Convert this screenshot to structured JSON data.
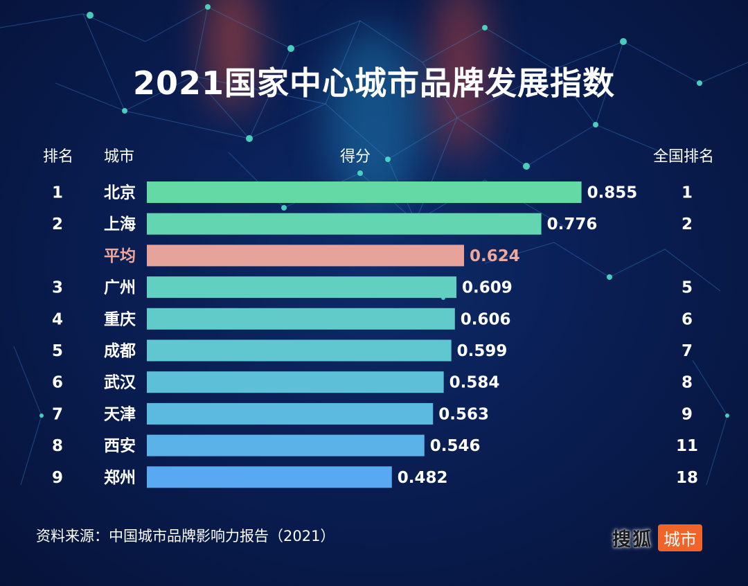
{
  "title": "2021国家中心城市品牌发展指数",
  "headers": {
    "rank": "排名",
    "city": "城市",
    "score": "得分",
    "national_rank": "全国排名"
  },
  "source": "资料来源：中国城市品牌影响力报告（2021）",
  "logo": {
    "text": "搜狐",
    "badge": "城市"
  },
  "colors": {
    "average_bar": "#e6a39c",
    "average_text": "#f0a89a",
    "logo_badge": "#f0642a"
  },
  "chart_data": {
    "type": "bar",
    "orientation": "horizontal",
    "title": "2021国家中心城市品牌发展指数",
    "xlabel": "得分",
    "xlim": [
      0,
      1
    ],
    "grid": false,
    "rows": [
      {
        "rank": "1",
        "city": "北京",
        "score": 0.855,
        "score_label": "0.855",
        "national_rank": "1",
        "color": "#64d9a6",
        "is_average": false
      },
      {
        "rank": "2",
        "city": "上海",
        "score": 0.776,
        "score_label": "0.776",
        "national_rank": "2",
        "color": "#64d5b1",
        "is_average": false
      },
      {
        "rank": "",
        "city": "平均",
        "score": 0.624,
        "score_label": "0.624",
        "national_rank": "",
        "color": "#e6a39c",
        "is_average": true
      },
      {
        "rank": "3",
        "city": "广州",
        "score": 0.609,
        "score_label": "0.609",
        "national_rank": "5",
        "color": "#62d0c1",
        "is_average": false
      },
      {
        "rank": "4",
        "city": "重庆",
        "score": 0.606,
        "score_label": "0.606",
        "national_rank": "6",
        "color": "#61cbc9",
        "is_average": false
      },
      {
        "rank": "5",
        "city": "成都",
        "score": 0.599,
        "score_label": "0.599",
        "national_rank": "7",
        "color": "#60c6d0",
        "is_average": false
      },
      {
        "rank": "6",
        "city": "武汉",
        "score": 0.584,
        "score_label": "0.584",
        "national_rank": "8",
        "color": "#5ec0d8",
        "is_average": false
      },
      {
        "rank": "7",
        "city": "天津",
        "score": 0.563,
        "score_label": "0.563",
        "national_rank": "9",
        "color": "#5cb9e0",
        "is_average": false
      },
      {
        "rank": "8",
        "city": "西安",
        "score": 0.546,
        "score_label": "0.546",
        "national_rank": "11",
        "color": "#5ab2e8",
        "is_average": false
      },
      {
        "rank": "9",
        "city": "郑州",
        "score": 0.482,
        "score_label": "0.482",
        "national_rank": "18",
        "color": "#58a9f2",
        "is_average": false
      }
    ]
  }
}
